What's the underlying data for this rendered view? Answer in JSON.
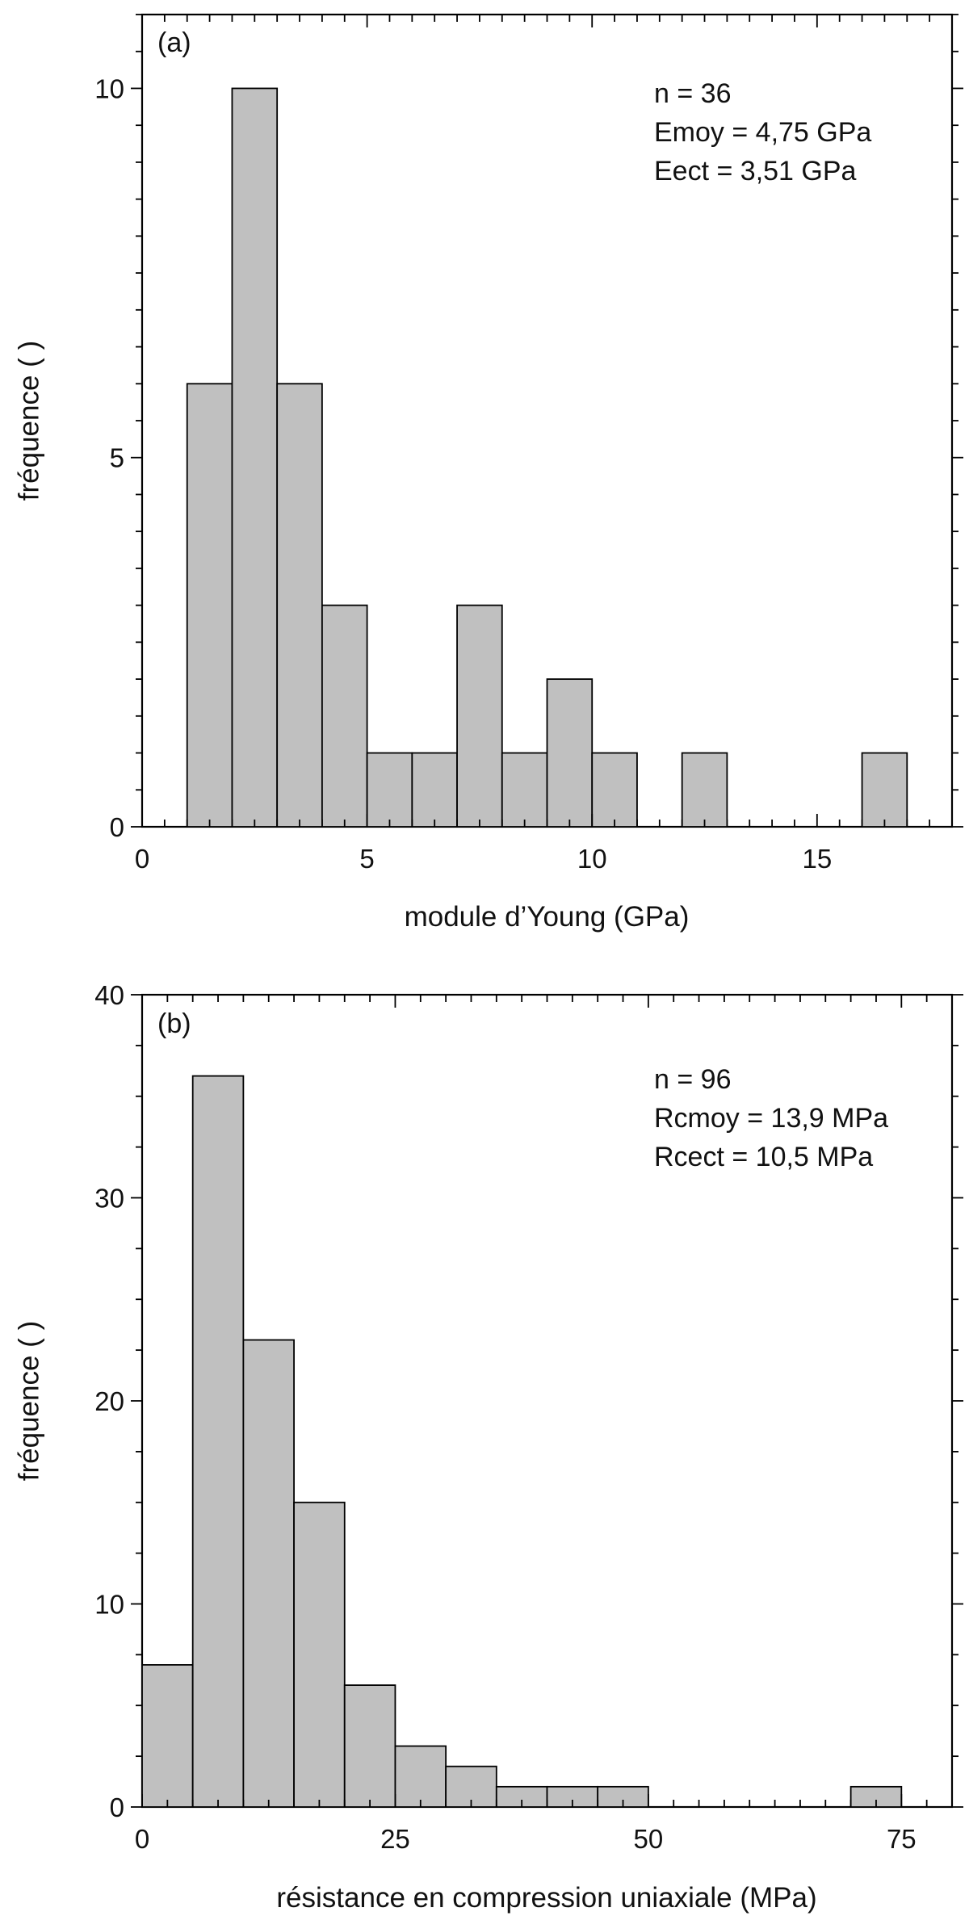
{
  "colors": {
    "bar_fill": "#c0c0c0",
    "bar_stroke": "#000000",
    "axis": "#000000"
  },
  "chart_data": [
    {
      "type": "bar",
      "panel_label": "(a)",
      "xlabel": "module d’Young (GPa)",
      "ylabel": "fréquence ( )",
      "xlim": [
        0,
        18
      ],
      "ylim": [
        0,
        11
      ],
      "xticks": [
        0,
        5,
        10,
        15
      ],
      "xtick_labels": [
        "0",
        "5",
        "10",
        "15"
      ],
      "yticks": [
        0,
        5,
        10
      ],
      "ytick_labels": [
        "0",
        "5",
        "10"
      ],
      "bin_width": 1,
      "bins": [
        {
          "x0": 1,
          "x1": 2,
          "value": 6
        },
        {
          "x0": 2,
          "x1": 3,
          "value": 10
        },
        {
          "x0": 3,
          "x1": 4,
          "value": 6
        },
        {
          "x0": 4,
          "x1": 5,
          "value": 3
        },
        {
          "x0": 5,
          "x1": 6,
          "value": 1
        },
        {
          "x0": 6,
          "x1": 7,
          "value": 1
        },
        {
          "x0": 7,
          "x1": 8,
          "value": 3
        },
        {
          "x0": 8,
          "x1": 9,
          "value": 1
        },
        {
          "x0": 9,
          "x1": 10,
          "value": 2
        },
        {
          "x0": 10,
          "x1": 11,
          "value": 1
        },
        {
          "x0": 12,
          "x1": 13,
          "value": 1
        },
        {
          "x0": 16,
          "x1": 17,
          "value": 1
        }
      ],
      "annotations": [
        "n = 36",
        "Emoy = 4,75 GPa",
        "Eect = 3,51 GPa"
      ],
      "grid": false
    },
    {
      "type": "bar",
      "panel_label": "(b)",
      "xlabel": "résistance en compression uniaxiale (MPa)",
      "ylabel": "fréquence ( )",
      "xlim": [
        0,
        80
      ],
      "ylim": [
        0,
        40
      ],
      "xticks": [
        0,
        25,
        50,
        75
      ],
      "xtick_labels": [
        "0",
        "25",
        "50",
        "75"
      ],
      "yticks": [
        0,
        10,
        20,
        30,
        40
      ],
      "ytick_labels": [
        "0",
        "10",
        "20",
        "30",
        "40"
      ],
      "bin_width": 5,
      "bins": [
        {
          "x0": 0,
          "x1": 5,
          "value": 7
        },
        {
          "x0": 5,
          "x1": 10,
          "value": 36
        },
        {
          "x0": 10,
          "x1": 15,
          "value": 23
        },
        {
          "x0": 15,
          "x1": 20,
          "value": 15
        },
        {
          "x0": 20,
          "x1": 25,
          "value": 6
        },
        {
          "x0": 25,
          "x1": 30,
          "value": 3
        },
        {
          "x0": 30,
          "x1": 35,
          "value": 2
        },
        {
          "x0": 35,
          "x1": 40,
          "value": 1
        },
        {
          "x0": 40,
          "x1": 45,
          "value": 1
        },
        {
          "x0": 45,
          "x1": 50,
          "value": 1
        },
        {
          "x0": 70,
          "x1": 75,
          "value": 1
        }
      ],
      "annotations": [
        "n = 96",
        "Rcmoy = 13,9 MPa",
        "Rcect = 10,5 MPa"
      ],
      "grid": false
    }
  ]
}
